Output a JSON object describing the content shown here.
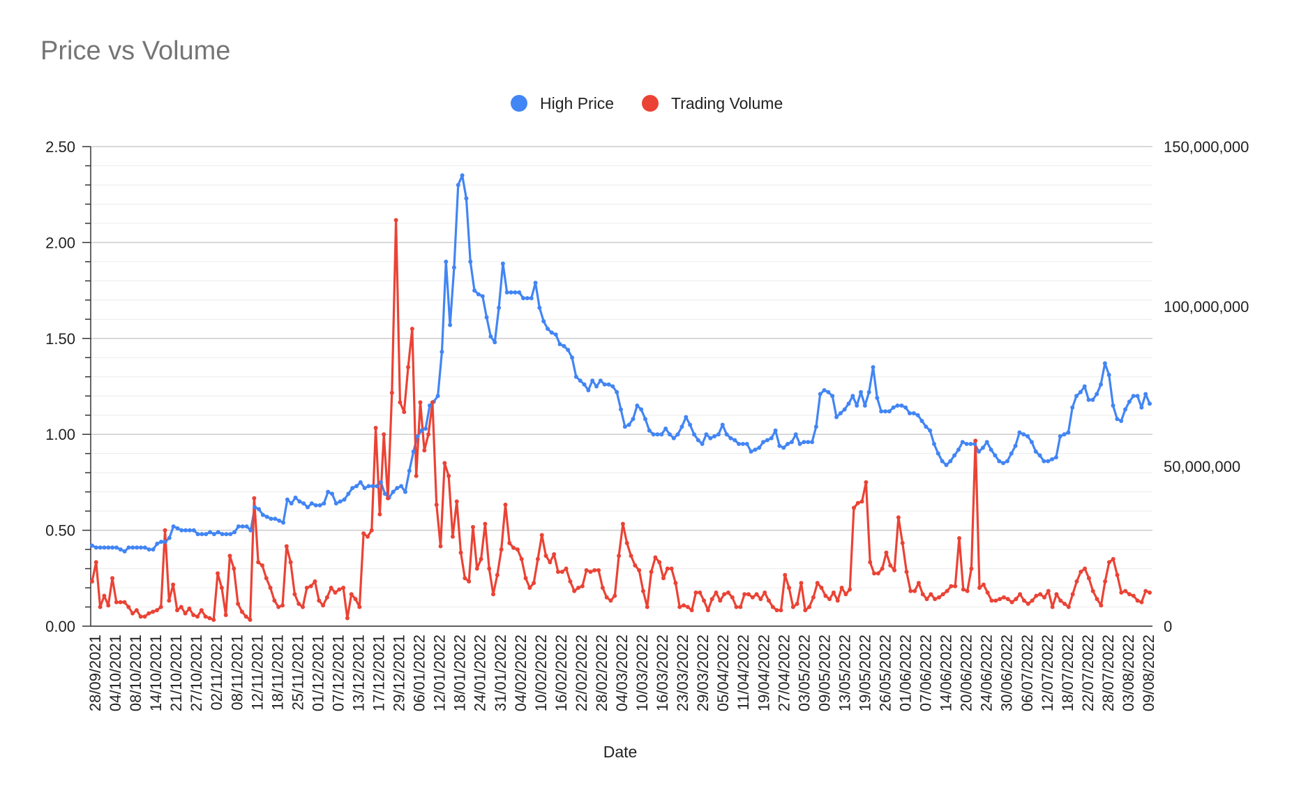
{
  "chart_data": {
    "type": "line",
    "title": "Price vs Volume",
    "xlabel": "Date",
    "ylabel": "",
    "y2label": "",
    "ylim": [
      0,
      2.5
    ],
    "y2lim": [
      0,
      150000000
    ],
    "yticks": [
      "0.00",
      "0.50",
      "1.00",
      "1.50",
      "2.00",
      "2.50"
    ],
    "y2ticks": [
      "0",
      "50,000,000",
      "100,000,000",
      "150,000,000"
    ],
    "grid": true,
    "legend_position": "top-center",
    "x_tick_labels": [
      "28/09/2021",
      "04/10/2021",
      "08/10/2021",
      "14/10/2021",
      "21/10/2021",
      "27/10/2021",
      "02/11/2021",
      "08/11/2021",
      "12/11/2021",
      "18/11/2021",
      "25/11/2021",
      "01/12/2021",
      "07/12/2021",
      "13/12/2021",
      "17/12/2021",
      "29/12/2021",
      "06/01/2022",
      "12/01/2022",
      "18/01/2022",
      "24/01/2022",
      "31/01/2022",
      "04/02/2022",
      "10/02/2022",
      "16/02/2022",
      "22/02/2022",
      "28/02/2022",
      "04/03/2022",
      "10/03/2022",
      "16/03/2022",
      "23/03/2022",
      "29/03/2022",
      "05/04/2022",
      "11/04/2022",
      "19/04/2022",
      "27/04/2022",
      "03/05/2022",
      "09/05/2022",
      "13/05/2022",
      "19/05/2022",
      "26/05/2022",
      "01/06/2022",
      "07/06/2022",
      "14/06/2022",
      "20/06/2022",
      "24/06/2022",
      "30/06/2022",
      "06/07/2022",
      "12/07/2022",
      "18/07/2022",
      "22/07/2022",
      "28/07/2022",
      "03/08/2022",
      "09/08/2022"
    ],
    "series": [
      {
        "name": "High Price",
        "axis": "left",
        "color": "#4285f4",
        "values": [
          0.42,
          0.41,
          0.41,
          0.41,
          0.41,
          0.41,
          0.41,
          0.4,
          0.39,
          0.41,
          0.41,
          0.41,
          0.41,
          0.41,
          0.4,
          0.4,
          0.43,
          0.44,
          0.44,
          0.46,
          0.52,
          0.51,
          0.5,
          0.5,
          0.5,
          0.5,
          0.48,
          0.48,
          0.48,
          0.49,
          0.48,
          0.49,
          0.48,
          0.48,
          0.48,
          0.49,
          0.52,
          0.52,
          0.52,
          0.5,
          0.62,
          0.61,
          0.58,
          0.57,
          0.56,
          0.56,
          0.55,
          0.54,
          0.66,
          0.64,
          0.67,
          0.65,
          0.64,
          0.62,
          0.64,
          0.63,
          0.63,
          0.64,
          0.7,
          0.69,
          0.64,
          0.65,
          0.66,
          0.69,
          0.72,
          0.73,
          0.75,
          0.72,
          0.73,
          0.73,
          0.73,
          0.75,
          0.69,
          0.67,
          0.7,
          0.72,
          0.73,
          0.7,
          0.81,
          0.91,
          0.99,
          1.02,
          1.03,
          1.15,
          1.17,
          1.2,
          1.43,
          1.9,
          1.57,
          1.87,
          2.3,
          2.35,
          2.23,
          1.9,
          1.75,
          1.73,
          1.72,
          1.61,
          1.51,
          1.48,
          1.66,
          1.89,
          1.74,
          1.74,
          1.74,
          1.74,
          1.71,
          1.71,
          1.71,
          1.79,
          1.66,
          1.59,
          1.55,
          1.53,
          1.52,
          1.47,
          1.46,
          1.44,
          1.4,
          1.3,
          1.28,
          1.26,
          1.23,
          1.28,
          1.25,
          1.28,
          1.26,
          1.26,
          1.25,
          1.22,
          1.13,
          1.04,
          1.05,
          1.08,
          1.15,
          1.13,
          1.08,
          1.02,
          1.0,
          1.0,
          1.0,
          1.03,
          1.0,
          0.98,
          1.0,
          1.04,
          1.09,
          1.05,
          1.0,
          0.97,
          0.95,
          1.0,
          0.98,
          0.99,
          1.0,
          1.05,
          1.0,
          0.98,
          0.97,
          0.95,
          0.95,
          0.95,
          0.91,
          0.92,
          0.93,
          0.96,
          0.97,
          0.98,
          1.02,
          0.94,
          0.93,
          0.95,
          0.96,
          1.0,
          0.95,
          0.96,
          0.96,
          0.96,
          1.04,
          1.21,
          1.23,
          1.22,
          1.2,
          1.09,
          1.11,
          1.13,
          1.16,
          1.2,
          1.15,
          1.22,
          1.15,
          1.22,
          1.35,
          1.19,
          1.12,
          1.12,
          1.12,
          1.14,
          1.15,
          1.15,
          1.14,
          1.11,
          1.11,
          1.1,
          1.07,
          1.04,
          1.02,
          0.95,
          0.9,
          0.86,
          0.84,
          0.86,
          0.89,
          0.92,
          0.96,
          0.95,
          0.95,
          0.95,
          0.91,
          0.93,
          0.96,
          0.92,
          0.89,
          0.86,
          0.85,
          0.86,
          0.9,
          0.94,
          1.01,
          1.0,
          0.99,
          0.96,
          0.91,
          0.89,
          0.86,
          0.86,
          0.87,
          0.88,
          0.99,
          1.0,
          1.01,
          1.14,
          1.2,
          1.22,
          1.25,
          1.18,
          1.18,
          1.21,
          1.26,
          1.37,
          1.31,
          1.15,
          1.08,
          1.07,
          1.13,
          1.17,
          1.2,
          1.2,
          1.14,
          1.21,
          1.16
        ]
      },
      {
        "name": "Trading Volume",
        "axis": "right",
        "color": "#ea4335",
        "values": [
          14000000,
          20000000,
          6000000,
          9500000,
          6500000,
          15000000,
          7500000,
          7500000,
          7500000,
          6000000,
          4000000,
          5000000,
          3000000,
          3000000,
          4000000,
          4500000,
          5000000,
          6000000,
          30000000,
          8000000,
          13000000,
          5000000,
          6000000,
          4000000,
          5500000,
          3500000,
          3000000,
          5000000,
          3000000,
          2500000,
          2000000,
          16500000,
          12000000,
          3500000,
          22000000,
          18000000,
          7000000,
          4500000,
          3000000,
          2000000,
          40000000,
          20000000,
          19000000,
          15000000,
          12000000,
          8000000,
          6000000,
          6500000,
          25000000,
          20000000,
          10000000,
          7000000,
          6000000,
          12000000,
          12500000,
          14000000,
          8000000,
          6500000,
          9000000,
          12000000,
          10500000,
          11500000,
          12000000,
          2500000,
          10000000,
          8500000,
          6000000,
          29000000,
          28000000,
          30000000,
          62000000,
          35000000,
          60000000,
          40000000,
          73000000,
          127000000,
          70000000,
          67000000,
          81000000,
          93000000,
          47000000,
          70000000,
          55000000,
          60000000,
          70000000,
          38000000,
          25000000,
          51000000,
          47000000,
          28000000,
          39000000,
          23000000,
          15000000,
          14000000,
          31000000,
          18000000,
          21000000,
          32000000,
          18000000,
          10000000,
          16000000,
          24000000,
          38000000,
          26000000,
          24500000,
          24000000,
          21000000,
          15000000,
          12000000,
          13500000,
          21000000,
          28500000,
          22000000,
          20000000,
          22500000,
          17000000,
          17000000,
          18000000,
          14000000,
          11000000,
          12000000,
          12500000,
          17500000,
          17000000,
          17500000,
          17500000,
          12000000,
          9000000,
          8000000,
          9500000,
          22000000,
          32000000,
          26000000,
          22000000,
          19000000,
          17500000,
          11000000,
          6000000,
          17000000,
          21500000,
          20000000,
          15000000,
          18000000,
          18000000,
          13500000,
          6000000,
          6500000,
          6000000,
          5000000,
          10500000,
          10500000,
          8000000,
          5000000,
          8500000,
          10500000,
          8000000,
          10000000,
          10500000,
          9000000,
          6000000,
          6000000,
          10000000,
          10000000,
          9000000,
          10000000,
          8500000,
          10500000,
          8000000,
          6000000,
          5000000,
          5000000,
          16000000,
          12000000,
          6000000,
          7000000,
          13500000,
          5000000,
          6000000,
          9000000,
          13500000,
          12000000,
          9500000,
          8500000,
          10500000,
          8000000,
          12000000,
          10000000,
          11500000,
          37000000,
          38500000,
          39000000,
          45000000,
          20000000,
          16500000,
          16500000,
          18000000,
          23000000,
          19000000,
          17500000,
          34000000,
          26000000,
          17000000,
          11000000,
          11000000,
          13500000,
          10000000,
          8500000,
          10000000,
          8500000,
          9000000,
          10000000,
          11000000,
          12500000,
          12500000,
          27500000,
          11500000,
          11000000,
          18000000,
          58000000,
          12000000,
          13000000,
          10500000,
          8000000,
          8000000,
          8500000,
          9000000,
          8500000,
          7500000,
          8500000,
          10000000,
          8000000,
          7000000,
          8000000,
          9500000,
          10000000,
          9000000,
          11000000,
          6000000,
          10000000,
          8000000,
          7000000,
          6000000,
          10000000,
          14000000,
          17000000,
          18000000,
          15000000,
          11000000,
          8500000,
          6500000,
          14000000,
          20000000,
          21000000,
          16000000,
          10500000,
          11000000,
          10000000,
          9500000,
          8000000,
          7500000,
          11000000,
          10500000
        ]
      }
    ]
  }
}
